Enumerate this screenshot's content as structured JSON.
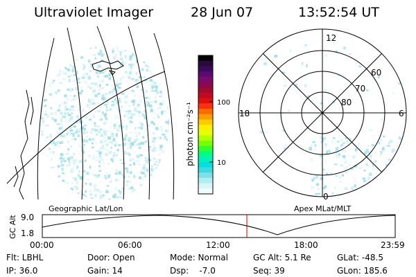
{
  "header": {
    "title": "Ultraviolet Imager",
    "date": "28 Jun 07",
    "time": "13:52:54 UT"
  },
  "colorbar": {
    "unit_label": "photon cm⁻²s⁻¹",
    "ticks": [
      "100",
      "10"
    ],
    "colors": [
      "#000000",
      "#2a0a3a",
      "#3a0a5a",
      "#5a0a70",
      "#7a0a70",
      "#8a0a50",
      "#a00a30",
      "#c00a20",
      "#e01010",
      "#ff3010",
      "#ff6a00",
      "#ff9a00",
      "#ffc800",
      "#ffee00",
      "#e6ff00",
      "#b4ff00",
      "#78ff00",
      "#30ff30",
      "#00ff80",
      "#00f0c0",
      "#00e0e0",
      "#40d8e0",
      "#80e0e8",
      "#b0eef0",
      "#d8f6f8",
      "#f0fcfc"
    ]
  },
  "polar": {
    "labels": [
      "12",
      "18",
      "6",
      "0"
    ],
    "lat_labels": [
      "60",
      "70",
      "80"
    ]
  },
  "map_labels": {
    "left": "Geographic Lat/Lon",
    "right": "Apex MLat/MLT"
  },
  "altitude_plot": {
    "axis_label": "GC Alt",
    "y_ticks": [
      "9.0",
      "1.8"
    ],
    "x_ticks": [
      "00:00",
      "06:00",
      "12:00",
      "18:00",
      "23:59"
    ],
    "current_time_fraction": 0.58
  },
  "info": {
    "row1": [
      "Flt: LBHL",
      "Door: Open",
      "Mode: Normal",
      "GC Alt: 5.1 Re",
      "GLat: -48.5"
    ],
    "row2": [
      "IP: 36.0",
      "Gain: 14",
      "Dsp:    -7.0",
      "Seq: 39",
      "GLon: 185.6"
    ]
  },
  "style": {
    "accent_red": "#cc0000",
    "speckle": "#b8e8ec"
  }
}
